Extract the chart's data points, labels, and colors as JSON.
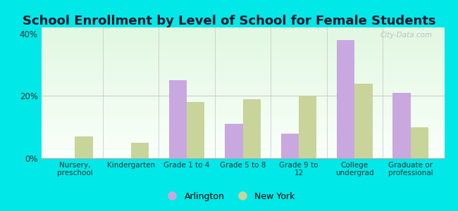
{
  "title": "School Enrollment by Level of School for Female Students",
  "categories": [
    "Nursery,\npreschool",
    "Kindergarten",
    "Grade 1 to 4",
    "Grade 5 to 8",
    "Grade 9 to\n12",
    "College\nundergrad",
    "Graduate or\nprofessional"
  ],
  "arlington": [
    0,
    0,
    25,
    11,
    8,
    38,
    21
  ],
  "new_york": [
    7,
    5,
    18,
    19,
    20,
    24,
    10
  ],
  "arlington_color": "#c9a8e0",
  "new_york_color": "#c8d49a",
  "background_color": "#00e8e8",
  "ylim": [
    0,
    42
  ],
  "yticks": [
    0,
    20,
    40
  ],
  "ytick_labels": [
    "0%",
    "20%",
    "40%"
  ],
  "legend_arlington": "Arlington",
  "legend_new_york": "New York",
  "title_fontsize": 13,
  "watermark": "City-Data.com"
}
